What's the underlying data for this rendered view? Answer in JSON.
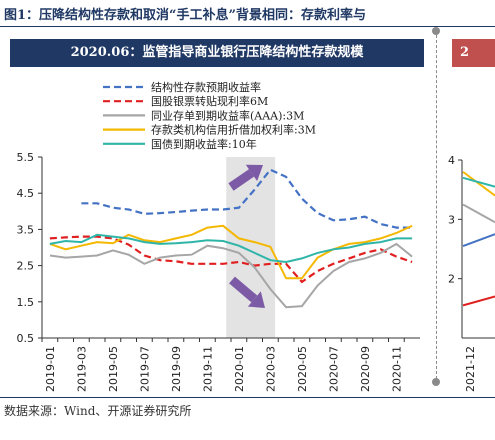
{
  "figure": {
    "title": "图1：压降结构性存款和取消“手工补息”背景相同：存款利率与",
    "left_panel_title": "2020.06：监管指导商业银行压降结构性存款规模",
    "right_panel_title": "2",
    "source": "数据来源：Wind、开源证券研究所"
  },
  "chart_data": [
    {
      "type": "line",
      "x": [
        "2019-01",
        "2019-02",
        "2019-03",
        "2019-04",
        "2019-05",
        "2019-06",
        "2019-07",
        "2019-08",
        "2019-09",
        "2019-10",
        "2019-11",
        "2019-12",
        "2020-01",
        "2020-02",
        "2020-03",
        "2020-04",
        "2020-05",
        "2020-06",
        "2020-07",
        "2020-08",
        "2020-09",
        "2020-10",
        "2020-11",
        "2020-12"
      ],
      "x_tick_labels": [
        "2019-01",
        "2019-03",
        "2019-05",
        "2019-07",
        "2019-09",
        "2019-11",
        "2020-01",
        "2020-03",
        "2020-05",
        "2020-07",
        "2020-09",
        "2020-11"
      ],
      "ylim": [
        0.5,
        5.5
      ],
      "y_ticks": [
        "0.5",
        "1.5",
        "2.5",
        "3.5",
        "4.5",
        "5.5"
      ],
      "legend_position": "top",
      "shaded_range": [
        "2020-01",
        "2020-03"
      ],
      "series": [
        {
          "name": "结构性存款预期收益率",
          "color": "#4472c4",
          "dash": "dashed",
          "values": [
            null,
            null,
            4.22,
            4.22,
            4.1,
            4.05,
            3.93,
            3.95,
            3.98,
            4.02,
            4.05,
            4.05,
            4.1,
            4.6,
            5.15,
            4.95,
            4.35,
            3.95,
            3.75,
            3.78,
            3.85,
            3.65,
            3.55,
            3.55
          ]
        },
        {
          "name": "国股银票转贴现利率6M",
          "color": "#e02020",
          "dash": "dashed",
          "values": [
            3.25,
            3.28,
            3.3,
            3.3,
            3.25,
            3.08,
            2.78,
            2.65,
            2.62,
            2.55,
            2.55,
            2.55,
            2.6,
            2.5,
            2.55,
            2.55,
            2.05,
            2.35,
            2.55,
            2.7,
            2.85,
            2.95,
            2.75,
            2.6
          ]
        },
        {
          "name": "同业存单到期收益率(AAA):3M",
          "color": "#a6a6a6",
          "dash": "solid",
          "values": [
            2.78,
            2.72,
            2.75,
            2.78,
            2.92,
            2.8,
            2.55,
            2.72,
            2.78,
            2.8,
            3.05,
            2.98,
            2.85,
            2.45,
            1.85,
            1.35,
            1.38,
            1.95,
            2.35,
            2.6,
            2.7,
            2.85,
            3.1,
            2.75
          ]
        },
        {
          "name": "存款类机构信用折借加权利率:3M",
          "color": "#f5b800",
          "dash": "solid",
          "values": [
            3.1,
            2.95,
            3.05,
            3.15,
            3.12,
            3.35,
            3.2,
            3.15,
            3.25,
            3.35,
            3.55,
            3.6,
            3.25,
            3.15,
            3.02,
            2.15,
            2.15,
            2.72,
            2.95,
            3.1,
            3.15,
            3.25,
            3.4,
            3.6
          ]
        },
        {
          "name": "国债到期收益率:10年",
          "color": "#2fb5a8",
          "dash": "solid",
          "values": [
            3.1,
            3.18,
            3.15,
            3.35,
            3.3,
            3.25,
            3.15,
            3.1,
            3.12,
            3.15,
            3.2,
            3.18,
            3.05,
            2.85,
            2.65,
            2.6,
            2.7,
            2.85,
            2.95,
            3.0,
            3.1,
            3.15,
            3.25,
            3.25
          ]
        }
      ]
    },
    {
      "type": "line",
      "y_ticks": [
        "4",
        "3",
        "2"
      ],
      "ylim": [
        1,
        4
      ],
      "x_tick_labels": [
        "2021-12"
      ],
      "series": [
        {
          "color": "#f5b800",
          "values": [
            3.8,
            3.4
          ]
        },
        {
          "color": "#2fb5a8",
          "values": [
            3.7,
            3.55
          ]
        },
        {
          "color": "#a6a6a6",
          "values": [
            3.25,
            2.95
          ]
        },
        {
          "color": "#4472c4",
          "values": [
            2.55,
            2.75
          ]
        },
        {
          "color": "#e02020",
          "values": [
            1.55,
            1.7
          ]
        }
      ]
    }
  ]
}
